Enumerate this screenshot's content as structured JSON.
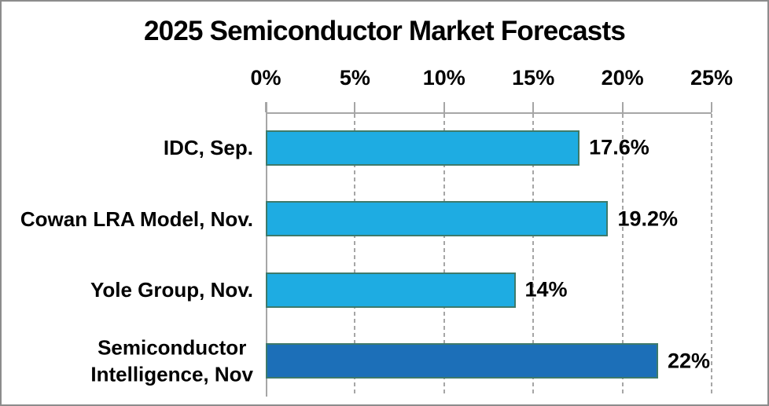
{
  "title": "2025 Semiconductor Market Forecasts",
  "chart_data": {
    "type": "bar",
    "orientation": "horizontal",
    "title": "2025 Semiconductor Market Forecasts",
    "categories": [
      "IDC, Sep.",
      "Cowan LRA Model, Nov.",
      "Yole Group, Nov.",
      "Semiconductor Intelligence, Nov"
    ],
    "category_display": [
      "IDC, Sep.",
      "Cowan LRA Model, Nov.",
      "Yole Group, Nov.",
      "Semiconductor\nIntelligence, Nov"
    ],
    "values": [
      17.6,
      19.2,
      14,
      22
    ],
    "value_labels": [
      "17.6%",
      "19.2%",
      "14%",
      "22%"
    ],
    "xlim": [
      0,
      25
    ],
    "x_ticks": [
      {
        "value": 0,
        "label": "0%"
      },
      {
        "value": 5,
        "label": "5%"
      },
      {
        "value": 10,
        "label": "10%"
      },
      {
        "value": 15,
        "label": "15%"
      },
      {
        "value": 20,
        "label": "20%"
      },
      {
        "value": 25,
        "label": "25%"
      }
    ],
    "x_axis_position": "top",
    "gridlines": "vertical-dashed",
    "legend": "none",
    "bar_colors": [
      "#1EACE2",
      "#1EACE2",
      "#1EACE2",
      "#1C6FB8"
    ],
    "bar_border_color": "#3E7A6B"
  },
  "colors": {
    "background": "#FFFFFF",
    "frame_border": "#8C8C8C",
    "gridline": "#A6A6A6",
    "axis_line": "#A6A6A6",
    "text": "#000000",
    "light_bar": "#1EACE2",
    "dark_bar": "#1C6FB8"
  }
}
